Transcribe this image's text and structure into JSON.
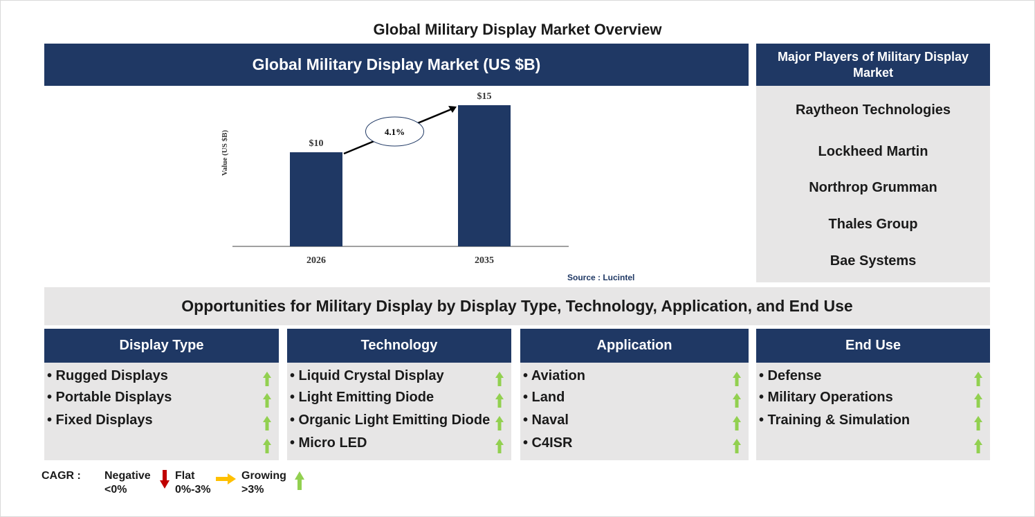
{
  "title": "Global Military Display Market Overview",
  "chart_header": "Global Military Display Market (US $B)",
  "chart_data": {
    "type": "bar",
    "categories": [
      "2026",
      "2035"
    ],
    "values": [
      10,
      15
    ],
    "value_labels": [
      "$10",
      "$15"
    ],
    "ylabel": "Value (US $B)",
    "cagr_label": "4.1%",
    "source": "Source : Lucintel",
    "bar_color": "#1f3864"
  },
  "players": {
    "header": "Major Players of Military Display Market",
    "items": [
      "Raytheon Technologies",
      "Lockheed Martin",
      "Northrop Grumman",
      "Thales Group",
      "Bae Systems"
    ]
  },
  "opportunities_title": "Opportunities for Military Display by Display Type, Technology, Application, and End Use",
  "segments": [
    {
      "header": "Display Type",
      "items": [
        "• Rugged Displays",
        "• Portable Displays",
        "• Fixed Displays"
      ]
    },
    {
      "header": "Technology",
      "items": [
        "• Liquid Crystal Display",
        "• Light Emitting Diode",
        "• Organic Light Emitting Diode",
        "• Micro LED"
      ]
    },
    {
      "header": "Application",
      "items": [
        "• Aviation",
        "• Land",
        "• Naval",
        "• C4ISR"
      ]
    },
    {
      "header": "End Use",
      "items": [
        "• Defense",
        "• Military Operations",
        "• Training & Simulation"
      ]
    }
  ],
  "legend": {
    "cagr": "CAGR :",
    "negative": "Negative",
    "negative_range": "<0%",
    "flat": "Flat",
    "flat_range": "0%-3%",
    "growing": "Growing",
    "growing_range": ">3%"
  },
  "colors": {
    "navy": "#1f3864",
    "panel": "#e7e6e6",
    "growing": "#92d050",
    "negative": "#c00000",
    "flat": "#ffc000"
  },
  "icons": {
    "growing": "up-arrow-icon",
    "negative": "down-arrow-icon",
    "flat": "right-arrow-icon"
  }
}
